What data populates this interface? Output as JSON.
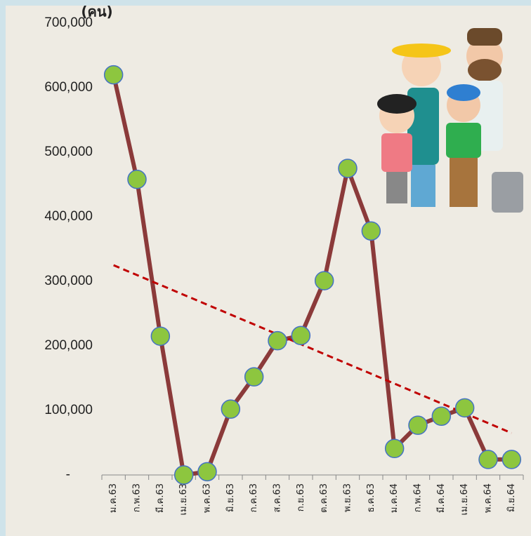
{
  "chart_data": {
    "type": "line",
    "y_label": "(คน)",
    "categories": [
      "ม.ค.63",
      "ก.พ.63",
      "มี.ค.63",
      "เม.ย.63",
      "พ.ค.63",
      "มิ.ย.63",
      "ก.ค.63",
      "ส.ค.63",
      "ก.ย.63",
      "ต.ค.63",
      "พ.ย.63",
      "ธ.ค.63",
      "ม.ค.64",
      "ก.พ.64",
      "มี.ค.64",
      "เม.ย.64",
      "พ.ค.64",
      "มิ.ย.64"
    ],
    "series": [
      {
        "color": "#8b3a3a",
        "marker_color": "#8dc63f",
        "values": [
          620000,
          458000,
          215000,
          0,
          5000,
          102000,
          152000,
          208000,
          216000,
          301000,
          475000,
          378000,
          41000,
          77000,
          91000,
          104000,
          24000,
          24000
        ]
      }
    ],
    "trendline": {
      "start": 325000,
      "end": 65000,
      "color": "#c00000"
    },
    "ylim": [
      0,
      700000
    ],
    "yticks": [
      {
        "value": 0,
        "label": "-"
      },
      {
        "value": 100000,
        "label": "100,000"
      },
      {
        "value": 200000,
        "label": "200,000"
      },
      {
        "value": 300000,
        "label": "300,000"
      },
      {
        "value": 400000,
        "label": "400,000"
      },
      {
        "value": 500000,
        "label": "500,000"
      },
      {
        "value": 600000,
        "label": "600,000"
      },
      {
        "value": 700000,
        "label": "700,000"
      }
    ]
  }
}
